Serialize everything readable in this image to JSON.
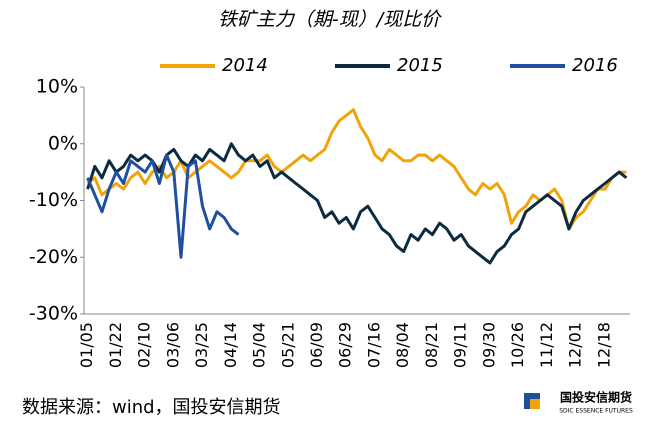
{
  "chart_data": {
    "type": "line",
    "title": "铁矿主力（期-现）/现比价",
    "categories": [
      "01/05",
      null,
      null,
      null,
      "01/22",
      null,
      null,
      null,
      "02/10",
      null,
      null,
      null,
      "03/06",
      null,
      null,
      null,
      "03/25",
      null,
      null,
      null,
      "04/14",
      null,
      null,
      null,
      "05/04",
      null,
      null,
      null,
      "05/21",
      null,
      null,
      null,
      "06/09",
      null,
      null,
      null,
      "06/29",
      null,
      null,
      null,
      "07/16",
      null,
      null,
      null,
      "08/04",
      null,
      null,
      null,
      "08/21",
      null,
      null,
      null,
      "09/11",
      null,
      null,
      null,
      "09/30",
      null,
      null,
      null,
      "10/26",
      null,
      null,
      null,
      "11/12",
      null,
      null,
      null,
      "12/01",
      null,
      null,
      null,
      "12/18",
      null,
      null,
      null
    ],
    "series": [
      {
        "name": "2014",
        "color": "#f0a30a",
        "values": [
          -7,
          -6,
          -9,
          -8,
          -7,
          -8,
          -6,
          -5,
          -7,
          -5,
          -4,
          -6,
          -5,
          -3,
          -6,
          -5,
          -4,
          -3,
          -4,
          -5,
          -6,
          -5,
          -3,
          -3,
          -3,
          -2,
          -4,
          -5,
          -4,
          -3,
          -2,
          -3,
          -2,
          -1,
          2,
          4,
          5,
          6,
          3,
          1,
          -2,
          -3,
          -1,
          -2,
          -3,
          -3,
          -2,
          -2,
          -3,
          -2,
          -3,
          -4,
          -6,
          -8,
          -9,
          -7,
          -8,
          -7,
          -9,
          -14,
          -12,
          -11,
          -9,
          -10,
          -9,
          -8,
          -10,
          -15,
          -13,
          -12,
          -10,
          -8,
          -8,
          -6,
          -5,
          -5
        ]
      },
      {
        "name": "2015",
        "color": "#0d2b3e",
        "values": [
          -8,
          -4,
          -6,
          -3,
          -5,
          -4,
          -2,
          -3,
          -2,
          -3,
          -5,
          -2,
          -1,
          -3,
          -4,
          -2,
          -3,
          -1,
          -2,
          -3,
          0,
          -2,
          -3,
          -2,
          -4,
          -3,
          -6,
          -5,
          -6,
          -7,
          -8,
          -9,
          -10,
          -13,
          -12,
          -14,
          -13,
          -15,
          -12,
          -11,
          -13,
          -15,
          -16,
          -18,
          -19,
          -16,
          -17,
          -15,
          -16,
          -14,
          -15,
          -17,
          -16,
          -18,
          -19,
          -20,
          -21,
          -19,
          -18,
          -16,
          -15,
          -12,
          -11,
          -10,
          -9,
          -10,
          -11,
          -15,
          -12,
          -10,
          -9,
          -8,
          -7,
          -6,
          -5,
          -6
        ]
      },
      {
        "name": "2016",
        "color": "#1f4fa0",
        "values": [
          -6,
          -9,
          -12,
          -8,
          -5,
          -7,
          -3,
          -4,
          -5,
          -3,
          -7,
          -2,
          -5,
          -20,
          -4,
          -3,
          -11,
          -15,
          -12,
          -13,
          -15,
          -16,
          null,
          null,
          null,
          null,
          null,
          null,
          null,
          null,
          null,
          null,
          null,
          null,
          null,
          null,
          null,
          null,
          null,
          null,
          null,
          null,
          null,
          null,
          null,
          null,
          null,
          null,
          null,
          null,
          null,
          null,
          null,
          null,
          null,
          null,
          null,
          null,
          null,
          null,
          null,
          null,
          null,
          null,
          null,
          null,
          null,
          null,
          null,
          null,
          null,
          null,
          null,
          null,
          null,
          null
        ]
      }
    ],
    "ylim": [
      -30,
      10
    ],
    "yticks": [
      {
        "value": -30,
        "label": "-30%"
      },
      {
        "value": -20,
        "label": "-20%"
      },
      {
        "value": -10,
        "label": "-10%"
      },
      {
        "value": 0,
        "label": "0%"
      },
      {
        "value": 10,
        "label": "10%"
      }
    ],
    "source": "数据来源：wind，国投安信期货",
    "logo": {
      "name": "国投安信期货",
      "subtitle": "SDIC ESSENCE FUTURES"
    }
  }
}
